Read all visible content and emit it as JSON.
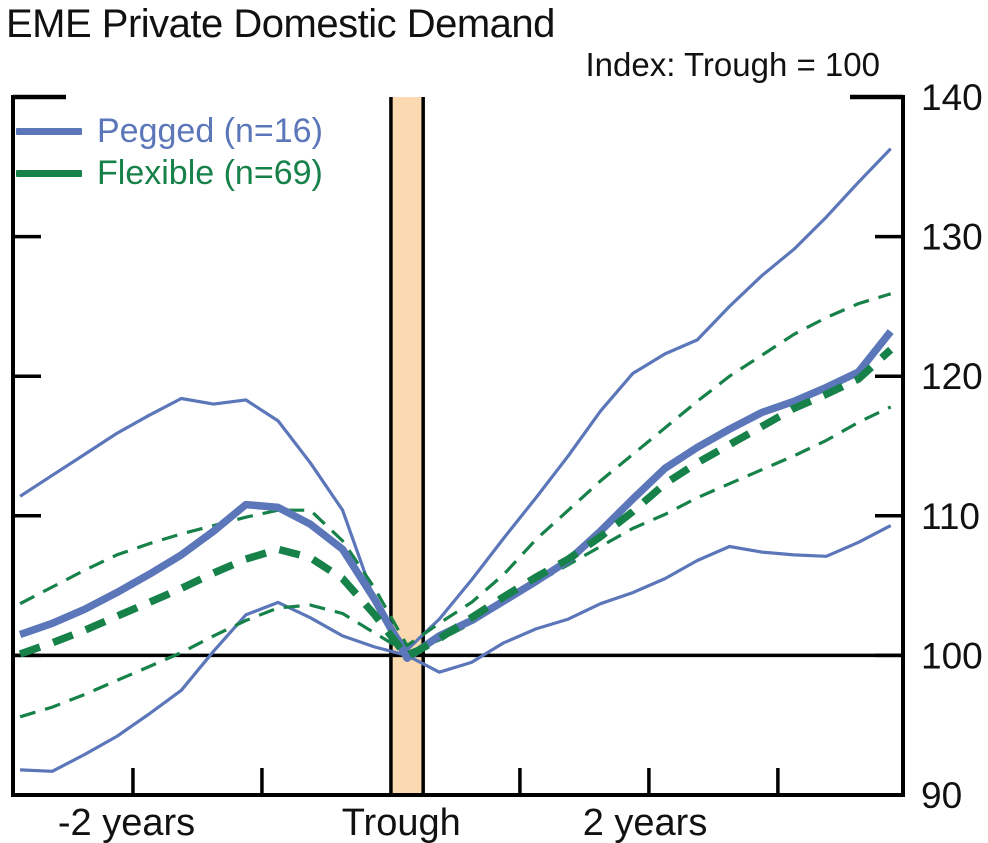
{
  "page": {
    "title": "EME Private Domestic Demand",
    "subtitle": "Index: Trough = 100"
  },
  "chart_data": {
    "type": "line",
    "title": "EME Private Domestic Demand",
    "subtitle": "Index: Trough = 100",
    "xlabel": "",
    "ylabel": "",
    "xlim_years": [
      -2.93,
      3.97
    ],
    "ylim": [
      90,
      140
    ],
    "grid": false,
    "reference_line_y": 100,
    "trough_band": {
      "x0_year": 0.0,
      "x1_year": 0.25
    },
    "x_years": [
      -2.875,
      -2.625,
      -2.375,
      -2.125,
      -1.875,
      -1.625,
      -1.375,
      -1.125,
      -0.875,
      -0.625,
      -0.375,
      -0.125,
      0.125,
      0.375,
      0.625,
      0.875,
      1.125,
      1.375,
      1.625,
      1.875,
      2.125,
      2.375,
      2.625,
      2.875,
      3.125,
      3.375,
      3.625,
      3.875
    ],
    "series": [
      {
        "id": "pegged-upper",
        "group": "Pegged",
        "role": "upper-range",
        "color": "#5B76B9",
        "style": "solid",
        "weight": "thin",
        "values": [
          111.4,
          112.9,
          114.4,
          115.9,
          117.2,
          118.4,
          118.0,
          118.3,
          116.8,
          113.8,
          110.4,
          103.9,
          100.4,
          102.6,
          105.4,
          108.4,
          111.3,
          114.3,
          117.5,
          120.2,
          121.6,
          122.6,
          125.0,
          127.2,
          129.1,
          131.4,
          133.9,
          136.3
        ]
      },
      {
        "id": "pegged-lower",
        "group": "Pegged",
        "role": "lower-range",
        "color": "#5B76B9",
        "style": "solid",
        "weight": "thin",
        "values": [
          91.8,
          91.7,
          92.9,
          94.2,
          95.8,
          97.5,
          100.3,
          102.9,
          103.8,
          102.7,
          101.4,
          100.6,
          100.0,
          98.8,
          99.5,
          100.9,
          101.9,
          102.6,
          103.7,
          104.5,
          105.5,
          106.8,
          107.8,
          107.4,
          107.2,
          107.1,
          108.1,
          109.3
        ]
      },
      {
        "id": "flexible-upper",
        "group": "Flexible",
        "role": "upper-range",
        "color": "#17814A",
        "style": "dashed",
        "weight": "thin",
        "values": [
          103.7,
          104.9,
          106.1,
          107.2,
          108.0,
          108.7,
          109.3,
          109.9,
          110.4,
          110.4,
          108.2,
          104.8,
          100.7,
          102.3,
          103.8,
          105.8,
          108.3,
          110.4,
          112.5,
          114.4,
          116.3,
          118.2,
          120.0,
          121.5,
          123.0,
          124.2,
          125.2,
          125.9
        ]
      },
      {
        "id": "flexible-lower",
        "group": "Flexible",
        "role": "lower-range",
        "color": "#17814A",
        "style": "dashed",
        "weight": "thin",
        "values": [
          95.6,
          96.3,
          97.2,
          98.2,
          99.2,
          100.2,
          101.4,
          102.5,
          103.4,
          103.6,
          103.0,
          101.6,
          100.2,
          101.1,
          102.3,
          103.8,
          105.2,
          106.5,
          107.8,
          109.1,
          110.1,
          111.3,
          112.3,
          113.3,
          114.3,
          115.4,
          116.7,
          117.8
        ]
      },
      {
        "id": "pegged-median",
        "group": "Pegged",
        "role": "median",
        "color": "#5B76B9",
        "style": "solid",
        "weight": "thick",
        "values": [
          101.5,
          102.3,
          103.3,
          104.5,
          105.8,
          107.2,
          108.9,
          110.8,
          110.6,
          109.4,
          107.6,
          104.0,
          99.8,
          101.4,
          102.5,
          103.9,
          105.3,
          106.8,
          108.9,
          111.2,
          113.4,
          114.9,
          116.2,
          117.4,
          118.2,
          119.2,
          120.3,
          123.2
        ]
      },
      {
        "id": "flexible-median",
        "group": "Flexible",
        "role": "median",
        "color": "#17814A",
        "style": "dashed",
        "weight": "thick",
        "values": [
          100.1,
          100.9,
          101.8,
          102.8,
          103.8,
          104.8,
          105.9,
          106.9,
          107.6,
          107.0,
          105.5,
          102.9,
          99.9,
          101.2,
          102.7,
          104.2,
          105.6,
          106.9,
          108.5,
          110.3,
          112.3,
          113.8,
          115.1,
          116.4,
          117.7,
          118.7,
          119.8,
          121.9
        ]
      }
    ],
    "y_axis": {
      "ticks": [
        90,
        100,
        110,
        120,
        130,
        140
      ],
      "label_side": "right"
    },
    "x_axis": {
      "ticks_years": [
        -2,
        -1,
        1,
        2,
        3
      ],
      "labels": [
        {
          "x_year": -2.05,
          "text": "-2 years"
        },
        {
          "x_year": 0.08,
          "text": "Trough"
        },
        {
          "x_year": 1.97,
          "text": "2 years"
        }
      ]
    },
    "legend": {
      "position": "top-left",
      "items": [
        {
          "label": "Pegged (n=16)",
          "series": "pegged-median"
        },
        {
          "label": "Flexible (n=69)",
          "series": "flexible-median"
        }
      ]
    },
    "colors": {
      "pegged_blue": "#5B76B9",
      "flexible_green": "#17814A",
      "trough_band": "#FBDAB2",
      "axis_black": "#000000"
    }
  }
}
